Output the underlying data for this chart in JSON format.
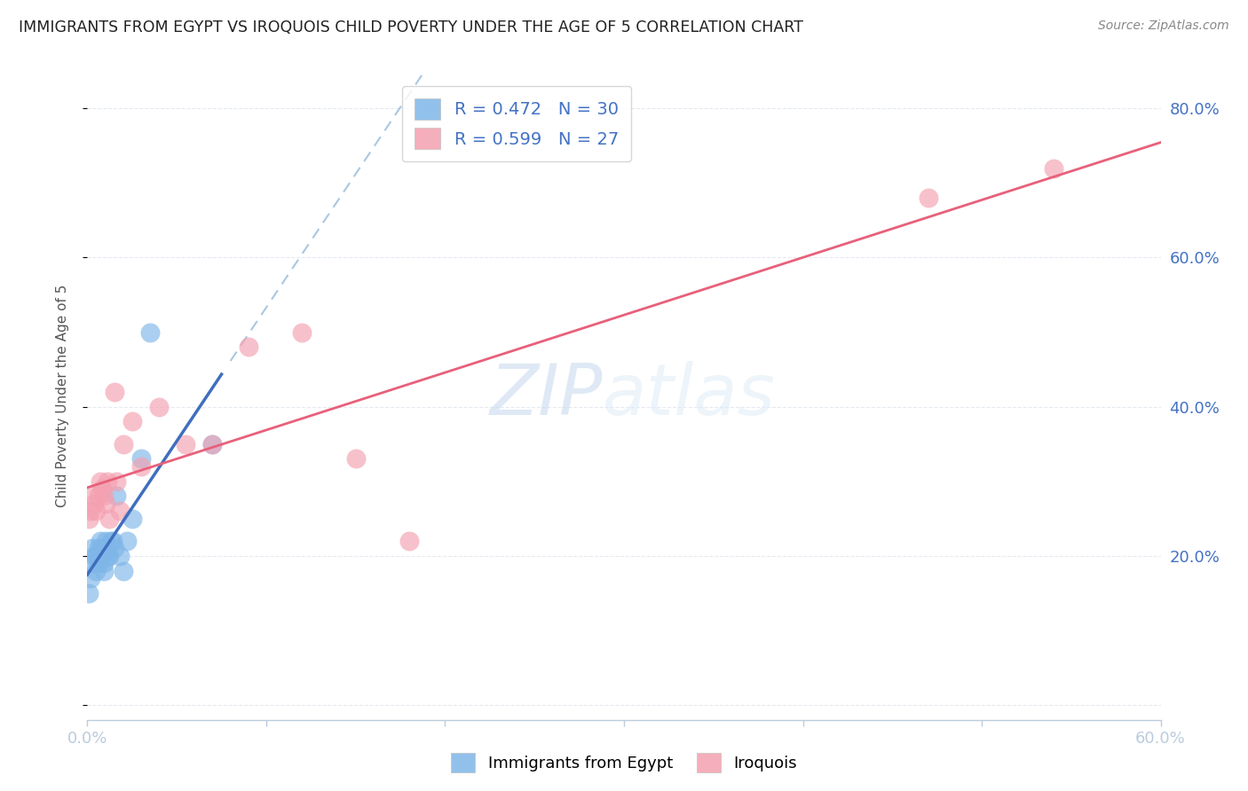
{
  "title": "IMMIGRANTS FROM EGYPT VS IROQUOIS CHILD POVERTY UNDER THE AGE OF 5 CORRELATION CHART",
  "source": "Source: ZipAtlas.com",
  "ylabel": "Child Poverty Under the Age of 5",
  "xlim": [
    0.0,
    0.6
  ],
  "ylim": [
    -0.02,
    0.85
  ],
  "x_ticks": [
    0.0,
    0.1,
    0.2,
    0.3,
    0.4,
    0.5,
    0.6
  ],
  "x_tick_labels": [
    "0.0%",
    "",
    "",
    "",
    "",
    "",
    "60.0%"
  ],
  "y_ticks_right": [
    0.0,
    0.2,
    0.4,
    0.6,
    0.8
  ],
  "y_tick_labels_right": [
    "",
    "20.0%",
    "40.0%",
    "60.0%",
    "80.0%"
  ],
  "legend_R1": "0.472",
  "legend_N1": "30",
  "legend_R2": "0.599",
  "legend_N2": "27",
  "color_blue": "#7EB6E8",
  "color_pink": "#F4A0B0",
  "color_blue_line": "#3F6EBE",
  "color_pink_line": "#E8607A",
  "color_blue_dashed": "#9ABEDD",
  "color_text_blue": "#4472C4",
  "legend_label1": "Immigrants from Egypt",
  "legend_label2": "Iroquois",
  "blue_x": [
    0.001,
    0.002,
    0.003,
    0.003,
    0.004,
    0.005,
    0.005,
    0.006,
    0.006,
    0.007,
    0.007,
    0.008,
    0.008,
    0.009,
    0.009,
    0.01,
    0.01,
    0.011,
    0.012,
    0.013,
    0.014,
    0.015,
    0.016,
    0.018,
    0.02,
    0.022,
    0.025,
    0.03,
    0.035,
    0.07
  ],
  "blue_y": [
    0.15,
    0.17,
    0.19,
    0.21,
    0.2,
    0.18,
    0.2,
    0.19,
    0.21,
    0.2,
    0.22,
    0.2,
    0.21,
    0.19,
    0.18,
    0.21,
    0.22,
    0.2,
    0.2,
    0.22,
    0.22,
    0.21,
    0.28,
    0.2,
    0.18,
    0.22,
    0.25,
    0.33,
    0.5,
    0.35
  ],
  "pink_x": [
    0.001,
    0.002,
    0.003,
    0.004,
    0.005,
    0.006,
    0.007,
    0.008,
    0.009,
    0.01,
    0.011,
    0.012,
    0.015,
    0.016,
    0.018,
    0.02,
    0.025,
    0.03,
    0.04,
    0.055,
    0.07,
    0.09,
    0.12,
    0.15,
    0.18,
    0.47,
    0.54
  ],
  "pink_y": [
    0.25,
    0.26,
    0.28,
    0.27,
    0.26,
    0.28,
    0.3,
    0.29,
    0.28,
    0.27,
    0.3,
    0.25,
    0.42,
    0.3,
    0.26,
    0.35,
    0.38,
    0.32,
    0.4,
    0.35,
    0.35,
    0.48,
    0.5,
    0.33,
    0.22,
    0.68,
    0.72
  ],
  "watermark_zip": "ZIP",
  "watermark_atlas": "atlas",
  "background_color": "#FFFFFF",
  "grid_color": "#E0E8F0"
}
